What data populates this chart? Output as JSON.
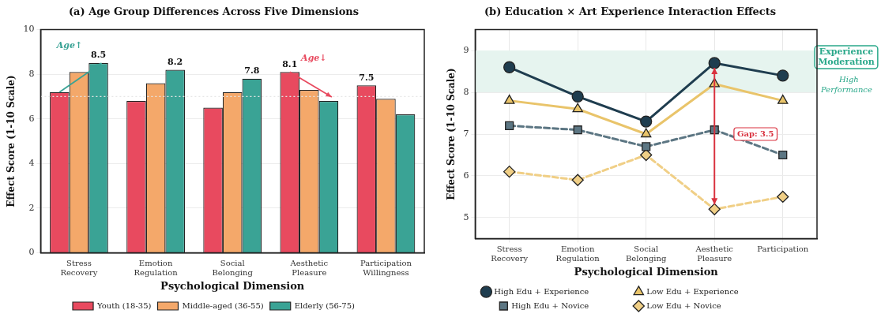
{
  "chart_data": [
    {
      "type": "bar",
      "title": "(a) Age Group Differences Across Five Dimensions",
      "xlabel": "Psychological Dimension",
      "ylabel": "Effect Score (1-10 Scale)",
      "categories": [
        "Stress Recovery",
        "Emotion Regulation",
        "Social Belonging",
        "Aesthetic Pleasure",
        "Participation Willingness"
      ],
      "series": [
        {
          "name": "Youth (18-35)",
          "color": "#e84a5f",
          "values": [
            7.2,
            6.8,
            6.5,
            8.1,
            7.5
          ],
          "value_labels": [
            null,
            null,
            null,
            "8.1",
            "7.5"
          ]
        },
        {
          "name": "Middle-aged (36-55)",
          "color": "#f4a86a",
          "values": [
            8.1,
            7.6,
            7.2,
            7.3,
            6.9
          ]
        },
        {
          "name": "Elderly (56-75)",
          "color": "#3aa395",
          "values": [
            8.5,
            8.2,
            7.8,
            6.8,
            6.2
          ],
          "value_labels": [
            "8.5",
            "8.2",
            "7.8",
            null,
            null
          ]
        }
      ],
      "ylim": [
        0,
        10
      ],
      "yticks": [
        0,
        2,
        4,
        6,
        8,
        10
      ],
      "grid": "y",
      "legend": "bottom",
      "ref_lines": [
        {
          "axis": "y",
          "value": 7,
          "color": "#e6e6e6",
          "line_style": "dotted"
        }
      ],
      "annotations": [
        "Age↑",
        "Age↓"
      ]
    },
    {
      "type": "line",
      "title": "(b) Education × Art Experience Interaction Effects",
      "xlabel": "Psychological Dimension",
      "ylabel": "Effect Score (1-10 Scale)",
      "categories": [
        "Stress Recovery",
        "Emotion Regulation",
        "Social Belonging",
        "Aesthetic Pleasure",
        "Participation"
      ],
      "series": [
        {
          "name": "High Edu + Experience",
          "color": "#1f3d4f",
          "values": [
            8.6,
            7.9,
            7.3,
            8.7,
            8.4
          ],
          "marker": "circle",
          "line_style": "solid"
        },
        {
          "name": "Low Edu + Experience",
          "color": "#e9c46a",
          "values": [
            7.8,
            7.6,
            7.0,
            8.2,
            7.8
          ],
          "marker": "triangle",
          "line_style": "solid"
        },
        {
          "name": "High Edu + Novice",
          "color": "#5c7683",
          "values": [
            7.2,
            7.1,
            6.7,
            7.1,
            6.5
          ],
          "marker": "square",
          "line_style": "dashed"
        },
        {
          "name": "Low Edu + Novice",
          "color": "#f0cf86",
          "values": [
            6.1,
            5.9,
            6.5,
            5.2,
            5.5
          ],
          "marker": "diamond",
          "line_style": "dashed"
        }
      ],
      "ylim": [
        4.5,
        9.5
      ],
      "yticks": [
        5,
        6,
        7,
        8,
        9
      ],
      "grid": true,
      "legend": "bottom",
      "bands": [
        {
          "axis": "y",
          "from": 8,
          "to": 9,
          "label": "High Performance",
          "color": "#e6f4ef"
        }
      ],
      "annotations": [
        "Experience Moderation",
        {
          "text": "Gap: 3.5",
          "x": "Aesthetic Pleasure",
          "y": 7
        }
      ]
    }
  ]
}
